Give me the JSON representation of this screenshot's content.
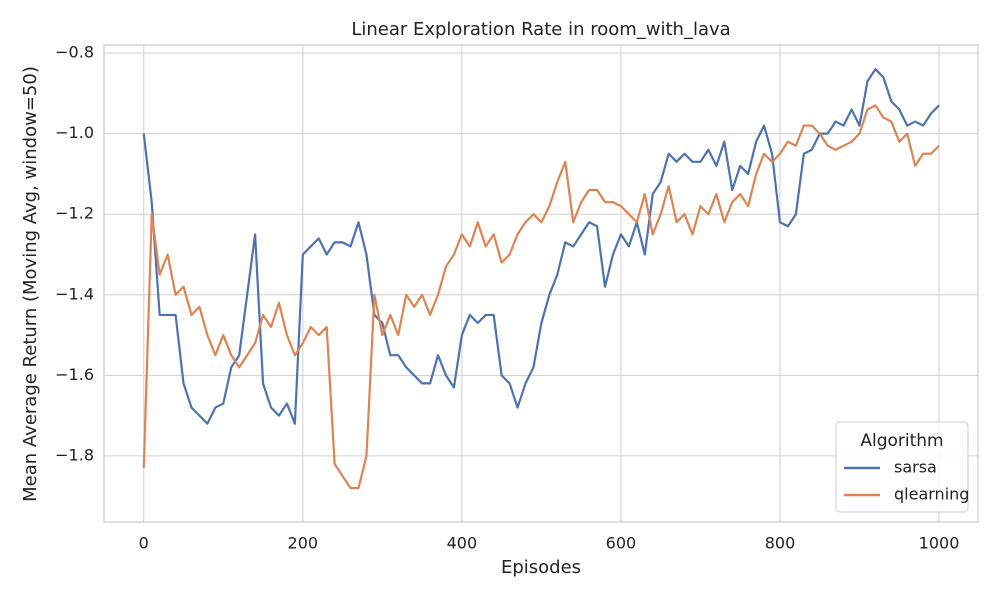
{
  "chart_data": {
    "type": "line",
    "title": "Linear Exploration Rate in room_with_lava",
    "x_label": "Episodes",
    "y_label": "Mean Average Return (Moving Avg, window=50)",
    "xlim": [
      -50,
      1049
    ],
    "ylim": [
      -1.964,
      -0.78
    ],
    "xticks": [
      0,
      200,
      400,
      600,
      800,
      1000
    ],
    "yticks": [
      {
        "value": -1.8,
        "label": "−1.8"
      },
      {
        "value": -1.6,
        "label": "−1.6"
      },
      {
        "value": -1.4,
        "label": "−1.4"
      },
      {
        "value": -1.2,
        "label": "−1.2"
      },
      {
        "value": -1.0,
        "label": "−1.0"
      },
      {
        "value": -0.8,
        "label": "−0.8"
      }
    ],
    "grid": true,
    "legend_title": "Algorithm",
    "legend_position": "lower-right",
    "x": [
      0,
      10,
      20,
      30,
      40,
      50,
      60,
      70,
      80,
      90,
      100,
      110,
      120,
      130,
      140,
      150,
      160,
      170,
      180,
      190,
      200,
      210,
      220,
      230,
      240,
      250,
      260,
      270,
      280,
      290,
      300,
      310,
      320,
      330,
      340,
      350,
      360,
      370,
      380,
      390,
      400,
      410,
      420,
      430,
      440,
      450,
      460,
      470,
      480,
      490,
      500,
      510,
      520,
      530,
      540,
      550,
      560,
      570,
      580,
      590,
      600,
      610,
      620,
      630,
      640,
      650,
      660,
      670,
      680,
      690,
      700,
      710,
      720,
      730,
      740,
      750,
      760,
      770,
      780,
      790,
      800,
      810,
      820,
      830,
      840,
      850,
      860,
      870,
      880,
      890,
      900,
      910,
      920,
      930,
      940,
      950,
      960,
      970,
      980,
      990,
      1000
    ],
    "series": [
      {
        "name": "sarsa",
        "color": "#4c72b0",
        "values": [
          -1.0,
          -1.17,
          -1.45,
          -1.45,
          -1.45,
          -1.62,
          -1.68,
          -1.7,
          -1.72,
          -1.68,
          -1.67,
          -1.58,
          -1.55,
          -1.4,
          -1.25,
          -1.62,
          -1.68,
          -1.7,
          -1.67,
          -1.72,
          -1.3,
          -1.28,
          -1.26,
          -1.3,
          -1.27,
          -1.27,
          -1.28,
          -1.22,
          -1.3,
          -1.45,
          -1.47,
          -1.55,
          -1.55,
          -1.58,
          -1.6,
          -1.62,
          -1.62,
          -1.55,
          -1.6,
          -1.63,
          -1.5,
          -1.45,
          -1.47,
          -1.45,
          -1.45,
          -1.6,
          -1.62,
          -1.68,
          -1.62,
          -1.58,
          -1.47,
          -1.4,
          -1.35,
          -1.27,
          -1.28,
          -1.25,
          -1.22,
          -1.23,
          -1.38,
          -1.3,
          -1.25,
          -1.28,
          -1.22,
          -1.3,
          -1.15,
          -1.12,
          -1.05,
          -1.07,
          -1.05,
          -1.07,
          -1.07,
          -1.04,
          -1.08,
          -1.02,
          -1.14,
          -1.08,
          -1.1,
          -1.02,
          -0.98,
          -1.05,
          -1.22,
          -1.23,
          -1.2,
          -1.05,
          -1.04,
          -1.0,
          -1.0,
          -0.97,
          -0.98,
          -0.94,
          -0.98,
          -0.87,
          -0.84,
          -0.86,
          -0.92,
          -0.94,
          -0.98,
          -0.97,
          -0.98,
          -0.95,
          -0.93
        ]
      },
      {
        "name": "qlearning",
        "color": "#dd8452",
        "values": [
          -1.83,
          -1.2,
          -1.35,
          -1.3,
          -1.4,
          -1.38,
          -1.45,
          -1.43,
          -1.5,
          -1.55,
          -1.5,
          -1.55,
          -1.58,
          -1.55,
          -1.52,
          -1.45,
          -1.48,
          -1.42,
          -1.5,
          -1.55,
          -1.52,
          -1.48,
          -1.5,
          -1.48,
          -1.82,
          -1.85,
          -1.88,
          -1.88,
          -1.8,
          -1.4,
          -1.5,
          -1.45,
          -1.5,
          -1.4,
          -1.43,
          -1.4,
          -1.45,
          -1.4,
          -1.33,
          -1.3,
          -1.25,
          -1.28,
          -1.22,
          -1.28,
          -1.25,
          -1.32,
          -1.3,
          -1.25,
          -1.22,
          -1.2,
          -1.22,
          -1.18,
          -1.12,
          -1.07,
          -1.22,
          -1.17,
          -1.14,
          -1.14,
          -1.17,
          -1.17,
          -1.18,
          -1.2,
          -1.22,
          -1.15,
          -1.25,
          -1.2,
          -1.13,
          -1.22,
          -1.2,
          -1.25,
          -1.18,
          -1.2,
          -1.15,
          -1.22,
          -1.17,
          -1.15,
          -1.18,
          -1.1,
          -1.05,
          -1.07,
          -1.05,
          -1.02,
          -1.03,
          -0.98,
          -0.98,
          -1.0,
          -1.03,
          -1.04,
          -1.03,
          -1.02,
          -1.0,
          -0.94,
          -0.93,
          -0.96,
          -0.97,
          -1.02,
          -1.0,
          -1.08,
          -1.05,
          -1.05,
          -1.03
        ]
      }
    ]
  }
}
